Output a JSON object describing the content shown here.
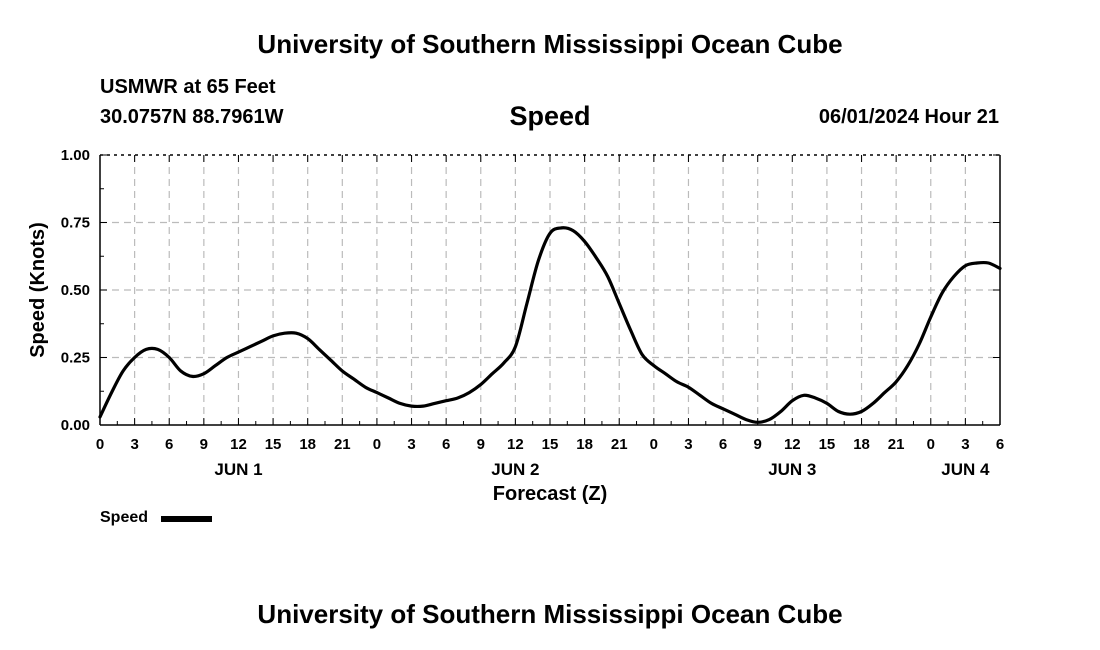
{
  "header": {
    "title": "University of Southern Mississippi Ocean Cube",
    "station": "USMWR at 65 Feet",
    "coordinates": "30.0757N  88.7961W",
    "chart_title": "Speed",
    "datetime": "06/01/2024 Hour 21"
  },
  "footer": {
    "title": "University of Southern Mississippi Ocean Cube"
  },
  "legend": {
    "label": "Speed",
    "color": "#000000"
  },
  "chart_data": {
    "type": "line",
    "title": "Speed",
    "xlabel": "Forecast (Z)",
    "ylabel": "Speed (Knots)",
    "ylim": [
      0,
      1
    ],
    "xlim_hours": [
      0,
      78
    ],
    "yticks": [
      "0.00",
      "0.25",
      "0.50",
      "0.75",
      "1.00"
    ],
    "xticks": [
      {
        "h": 0,
        "label": "0"
      },
      {
        "h": 3,
        "label": "3"
      },
      {
        "h": 6,
        "label": "6"
      },
      {
        "h": 9,
        "label": "9"
      },
      {
        "h": 12,
        "label": "12"
      },
      {
        "h": 15,
        "label": "15"
      },
      {
        "h": 18,
        "label": "18"
      },
      {
        "h": 21,
        "label": "21"
      },
      {
        "h": 24,
        "label": "0"
      },
      {
        "h": 27,
        "label": "3"
      },
      {
        "h": 30,
        "label": "6"
      },
      {
        "h": 33,
        "label": "9"
      },
      {
        "h": 36,
        "label": "12"
      },
      {
        "h": 39,
        "label": "15"
      },
      {
        "h": 42,
        "label": "18"
      },
      {
        "h": 45,
        "label": "21"
      },
      {
        "h": 48,
        "label": "0"
      },
      {
        "h": 51,
        "label": "3"
      },
      {
        "h": 54,
        "label": "6"
      },
      {
        "h": 57,
        "label": "9"
      },
      {
        "h": 60,
        "label": "12"
      },
      {
        "h": 63,
        "label": "15"
      },
      {
        "h": 66,
        "label": "18"
      },
      {
        "h": 69,
        "label": "21"
      },
      {
        "h": 72,
        "label": "0"
      },
      {
        "h": 75,
        "label": "3"
      },
      {
        "h": 78,
        "label": "6"
      }
    ],
    "day_labels": [
      {
        "h": 12,
        "label": "JUN 1"
      },
      {
        "h": 36,
        "label": "JUN 2"
      },
      {
        "h": 60,
        "label": "JUN 3"
      },
      {
        "h": 75,
        "label": "JUN 4"
      }
    ],
    "grid": true,
    "series": [
      {
        "name": "Speed",
        "color": "#000000",
        "points": [
          [
            0,
            0.03
          ],
          [
            1,
            0.12
          ],
          [
            2,
            0.2
          ],
          [
            3,
            0.25
          ],
          [
            4,
            0.28
          ],
          [
            5,
            0.28
          ],
          [
            6,
            0.25
          ],
          [
            7,
            0.2
          ],
          [
            8,
            0.18
          ],
          [
            9,
            0.19
          ],
          [
            10,
            0.22
          ],
          [
            11,
            0.25
          ],
          [
            12,
            0.27
          ],
          [
            13,
            0.29
          ],
          [
            14,
            0.31
          ],
          [
            15,
            0.33
          ],
          [
            16,
            0.34
          ],
          [
            17,
            0.34
          ],
          [
            18,
            0.32
          ],
          [
            19,
            0.28
          ],
          [
            20,
            0.24
          ],
          [
            21,
            0.2
          ],
          [
            22,
            0.17
          ],
          [
            23,
            0.14
          ],
          [
            24,
            0.12
          ],
          [
            25,
            0.1
          ],
          [
            26,
            0.08
          ],
          [
            27,
            0.07
          ],
          [
            28,
            0.07
          ],
          [
            29,
            0.08
          ],
          [
            30,
            0.09
          ],
          [
            31,
            0.1
          ],
          [
            32,
            0.12
          ],
          [
            33,
            0.15
          ],
          [
            34,
            0.19
          ],
          [
            35,
            0.23
          ],
          [
            36,
            0.29
          ],
          [
            37,
            0.45
          ],
          [
            38,
            0.61
          ],
          [
            39,
            0.71
          ],
          [
            40,
            0.73
          ],
          [
            41,
            0.72
          ],
          [
            42,
            0.68
          ],
          [
            43,
            0.62
          ],
          [
            44,
            0.55
          ],
          [
            45,
            0.45
          ],
          [
            46,
            0.35
          ],
          [
            47,
            0.26
          ],
          [
            48,
            0.22
          ],
          [
            49,
            0.19
          ],
          [
            50,
            0.16
          ],
          [
            51,
            0.14
          ],
          [
            52,
            0.11
          ],
          [
            53,
            0.08
          ],
          [
            54,
            0.06
          ],
          [
            55,
            0.04
          ],
          [
            56,
            0.02
          ],
          [
            57,
            0.01
          ],
          [
            58,
            0.02
          ],
          [
            59,
            0.05
          ],
          [
            60,
            0.09
          ],
          [
            61,
            0.11
          ],
          [
            62,
            0.1
          ],
          [
            63,
            0.08
          ],
          [
            64,
            0.05
          ],
          [
            65,
            0.04
          ],
          [
            66,
            0.05
          ],
          [
            67,
            0.08
          ],
          [
            68,
            0.12
          ],
          [
            69,
            0.16
          ],
          [
            70,
            0.22
          ],
          [
            71,
            0.3
          ],
          [
            72,
            0.4
          ],
          [
            73,
            0.49
          ],
          [
            74,
            0.55
          ],
          [
            75,
            0.59
          ],
          [
            76,
            0.6
          ],
          [
            77,
            0.6
          ],
          [
            78,
            0.58
          ]
        ]
      }
    ]
  }
}
